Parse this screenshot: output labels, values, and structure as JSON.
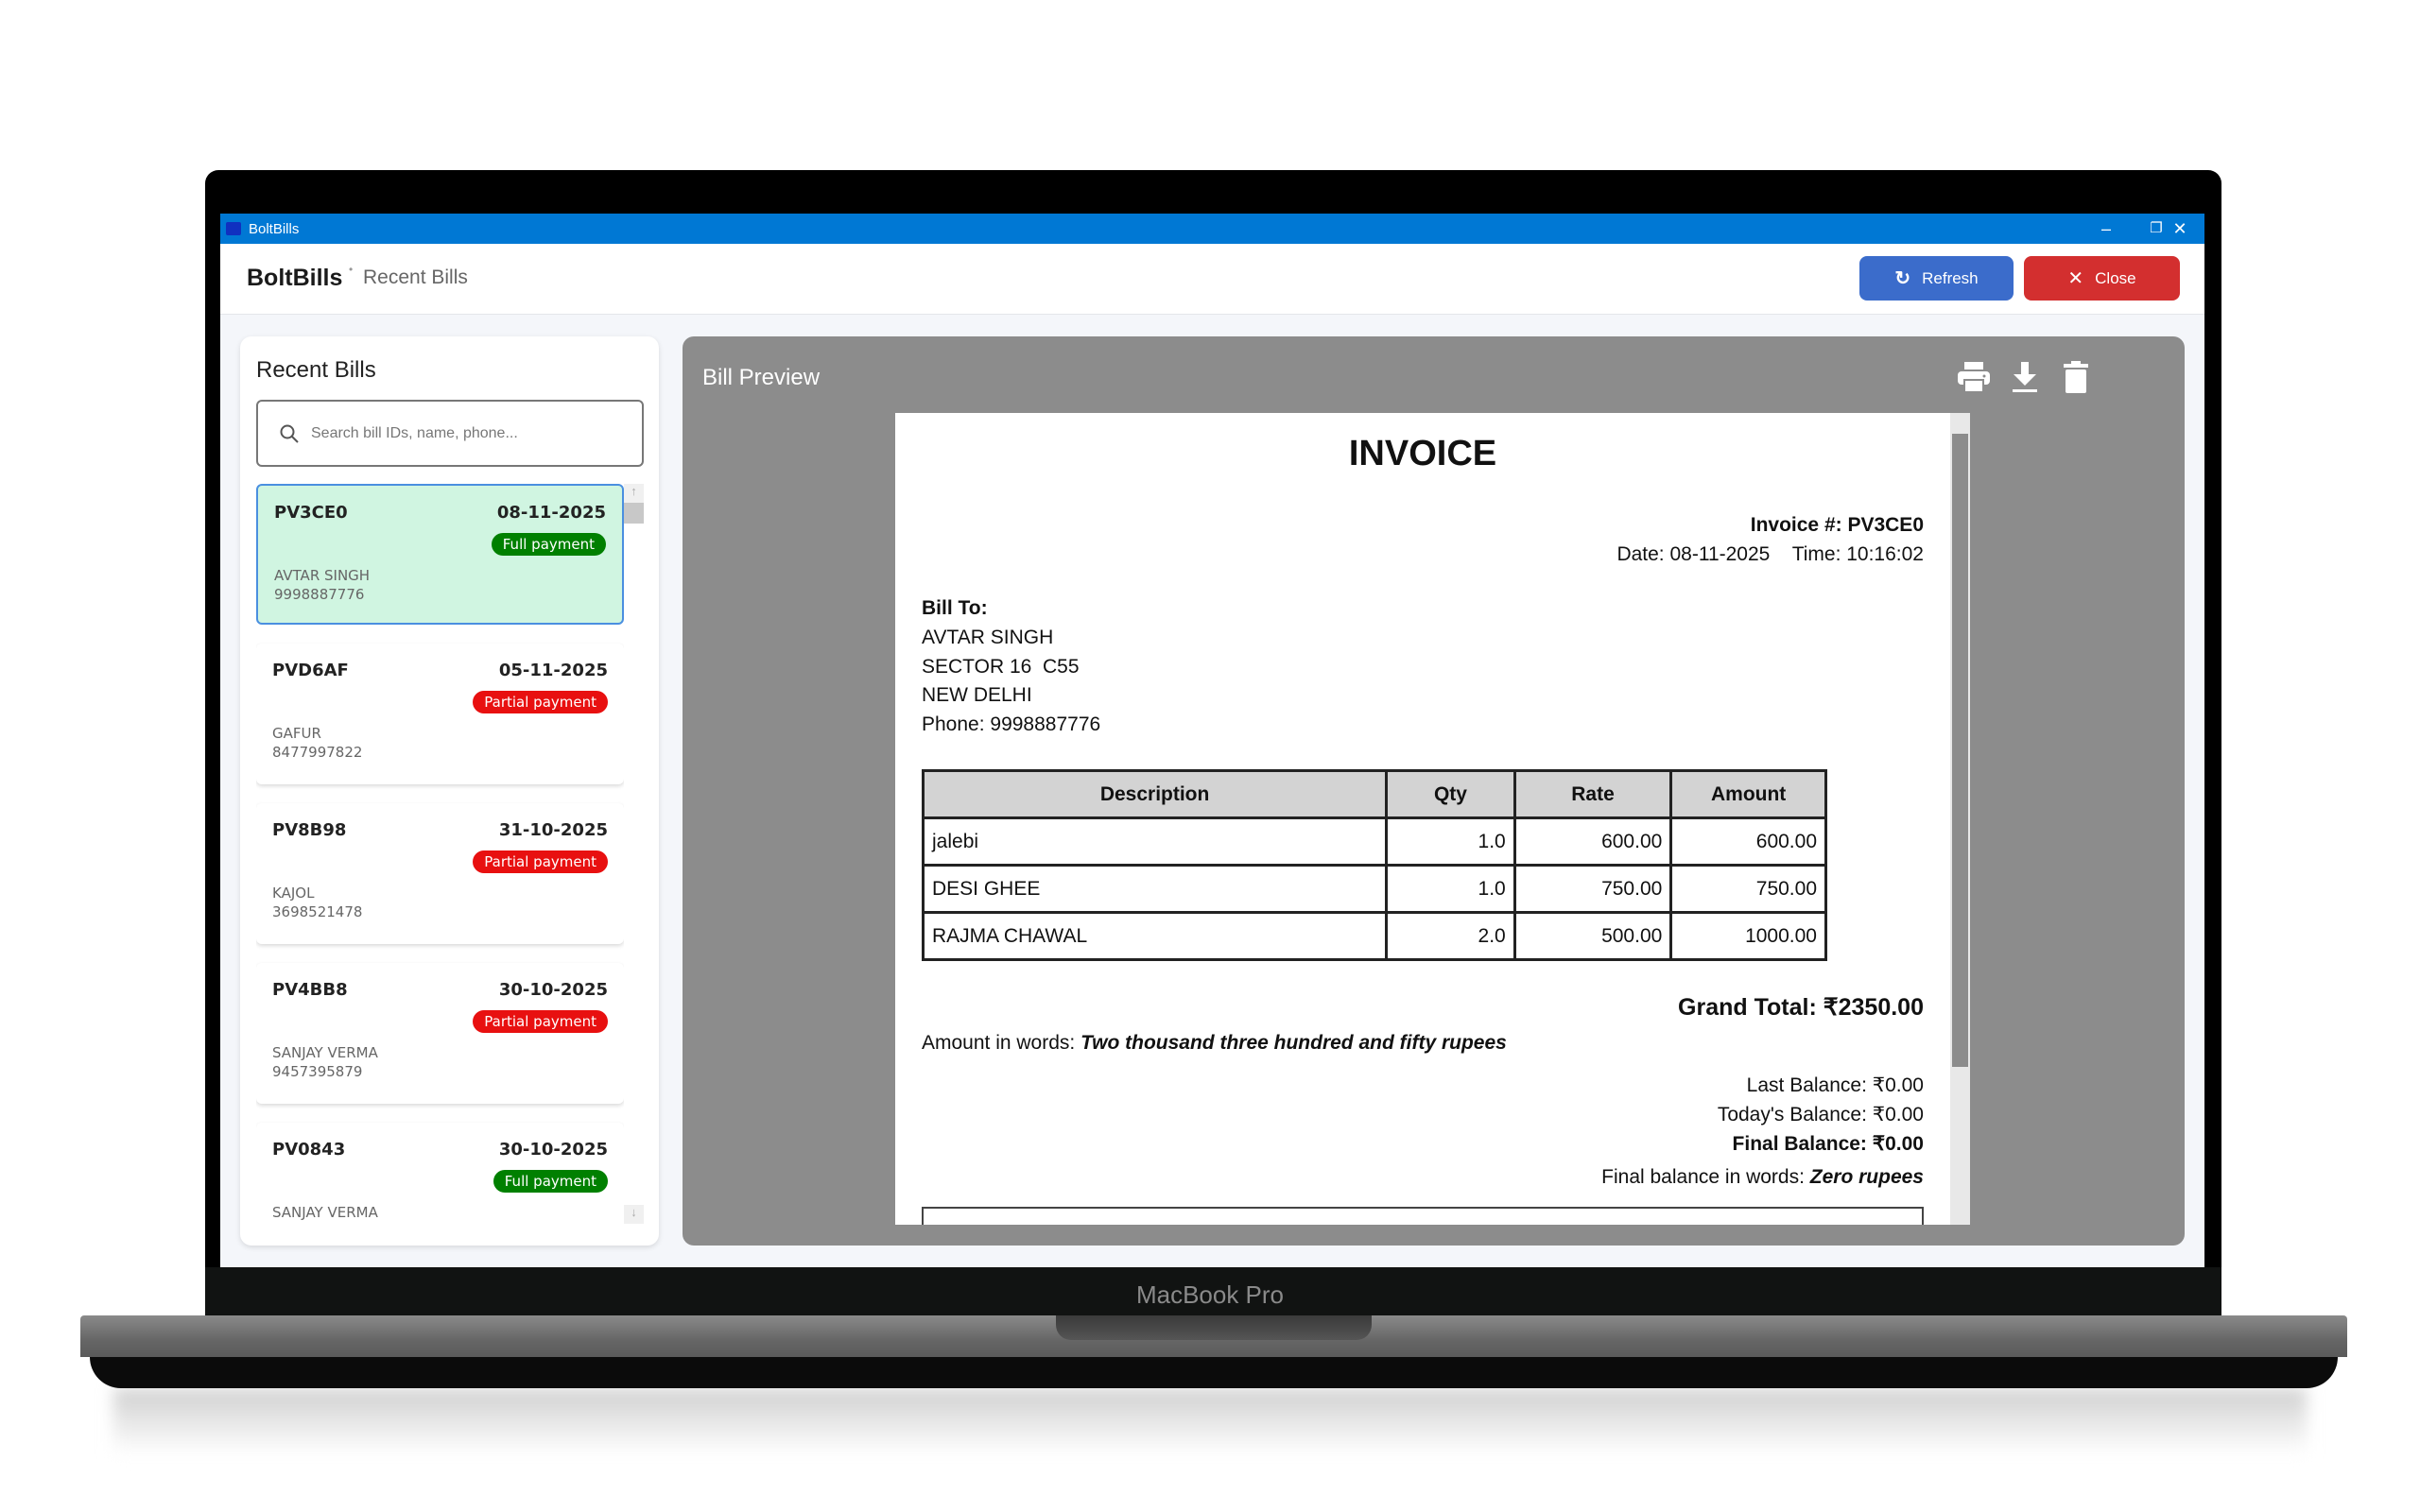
{
  "device": {
    "label": "MacBook Pro"
  },
  "window": {
    "title": "BoltBills",
    "controls": [
      "minimize",
      "restore",
      "close"
    ]
  },
  "header": {
    "app_name": "BoltBills",
    "breadcrumb": "Recent Bills",
    "refresh_label": "Refresh",
    "close_label": "Close"
  },
  "colors": {
    "titlebar": "#0078d4",
    "refresh": "#3b6ccb",
    "close": "#d32f2f",
    "full_payment": "#008000",
    "partial_payment": "#e81010",
    "selected_card": "#d0f5e1"
  },
  "sidebar": {
    "title": "Recent Bills",
    "search_placeholder": "Search bill IDs, name, phone...",
    "bills": [
      {
        "id": "PV3CE0",
        "date": "08-11-2025",
        "status": "Full payment",
        "name": "AVTAR SINGH",
        "phone": "9998887776",
        "selected": true
      },
      {
        "id": "PVD6AF",
        "date": "05-11-2025",
        "status": "Partial payment",
        "name": "GAFUR",
        "phone": "8477997822"
      },
      {
        "id": "PV8B98",
        "date": "31-10-2025",
        "status": "Partial payment",
        "name": "KAJOL",
        "phone": "3698521478"
      },
      {
        "id": "PV4BB8",
        "date": "30-10-2025",
        "status": "Partial payment",
        "name": "SANJAY VERMA",
        "phone": "9457395879"
      },
      {
        "id": "PV0843",
        "date": "30-10-2025",
        "status": "Full payment",
        "name": "SANJAY VERMA",
        "phone": ""
      }
    ]
  },
  "preview": {
    "title": "Bill Preview",
    "actions": [
      "print-icon",
      "download-icon",
      "trash-icon"
    ],
    "invoice": {
      "heading": "INVOICE",
      "number": "Invoice #: PV3CE0",
      "date": "Date: 08-11-2025",
      "time": "Time: 10:16:02",
      "bill_to_label": "Bill To:",
      "customer": "AVTAR SINGH",
      "address1": "SECTOR 16  C55",
      "address2": "NEW DELHI",
      "phone": "Phone: 9998887776",
      "columns": [
        "Description",
        "Qty",
        "Rate",
        "Amount"
      ],
      "items": [
        [
          "jalebi",
          "1.0",
          "600.00",
          "600.00"
        ],
        [
          "DESI GHEE",
          "1.0",
          "750.00",
          "750.00"
        ],
        [
          "RAJMA CHAWAL",
          "2.0",
          "500.00",
          "1000.00"
        ]
      ],
      "grand_total": "Grand Total: ₹2350.00",
      "amount_words_label": "Amount in words: ",
      "amount_words": "Two thousand three hundred and fifty rupees",
      "last_balance": "Last Balance: ₹0.00",
      "todays_balance": "Today's Balance: ₹0.00",
      "final_balance": "Final Balance: ₹0.00",
      "final_words_label": "Final balance in words: ",
      "final_words": "Zero rupees"
    }
  }
}
